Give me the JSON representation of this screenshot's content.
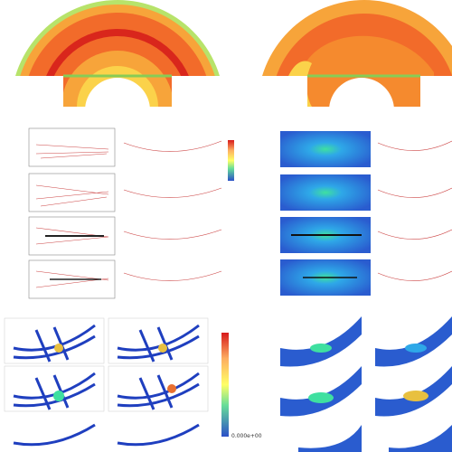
{
  "legend": {
    "bottom_label": "0.000e+00"
  }
}
